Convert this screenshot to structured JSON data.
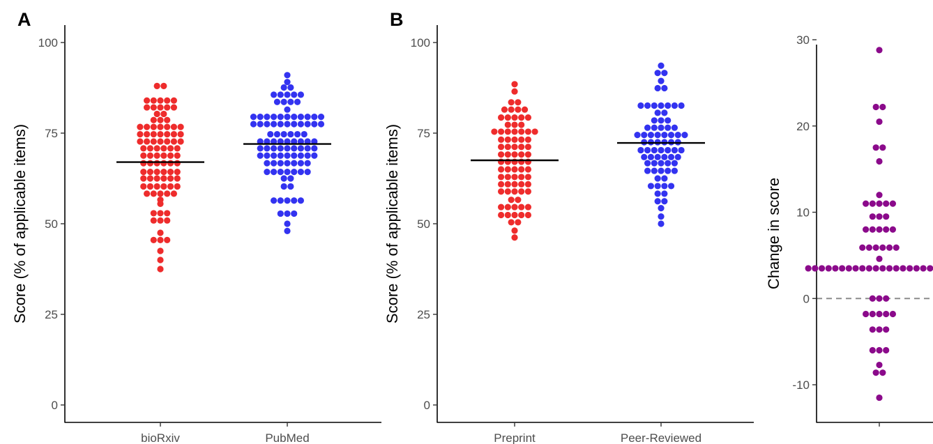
{
  "colors": {
    "group1": "#ee2c2c",
    "group2": "#3333f0",
    "change": "#8b0a8b",
    "mean_line": "#000000",
    "zero_line": "#8c8c8c"
  },
  "chart_data": [
    {
      "type": "scatter",
      "style": "beeswarm",
      "panel_label": "A",
      "title": "",
      "xlabel": "",
      "ylabel": "Score (% of applicable items)",
      "ylim": [
        0,
        100
      ],
      "yticks": [
        0,
        25,
        50,
        75,
        100
      ],
      "grid": false,
      "legend": "none",
      "categories": [
        "bioRxiv",
        "PubMed"
      ],
      "means": [
        67,
        72
      ],
      "values": [
        [
          37.5,
          40,
          42.5,
          45.5,
          45.5,
          45.5,
          47.5,
          50.9,
          50.9,
          50.9,
          52.9,
          52.9,
          52.9,
          55.5,
          56.6,
          58.3,
          58.3,
          58.3,
          58.3,
          58.3,
          60.3,
          60.3,
          60.3,
          60.3,
          60.3,
          60.3,
          62.5,
          62.5,
          62.5,
          62.5,
          62.5,
          62.5,
          64.3,
          64.3,
          64.3,
          64.3,
          64.3,
          64.3,
          66.7,
          66.7,
          66.7,
          66.7,
          66.7,
          66.7,
          68.8,
          68.8,
          68.8,
          68.8,
          68.8,
          68.8,
          70.8,
          70.8,
          70.8,
          70.8,
          70.8,
          70.8,
          72.7,
          72.7,
          72.7,
          72.7,
          72.7,
          72.7,
          72.7,
          74.7,
          74.7,
          74.7,
          74.7,
          74.7,
          74.7,
          74.7,
          76.7,
          76.7,
          76.7,
          76.7,
          76.7,
          76.7,
          76.7,
          78.6,
          78.6,
          78.6,
          80.3,
          80.3,
          82.1,
          82.1,
          82.1,
          82.1,
          82.1,
          84,
          84,
          84,
          84,
          84,
          88,
          88
        ],
        [
          48,
          50,
          52.8,
          52.8,
          52.8,
          56.4,
          56.4,
          56.4,
          56.4,
          56.4,
          60.3,
          60.3,
          62.5,
          62.5,
          64.3,
          64.3,
          64.3,
          64.3,
          64.3,
          64.3,
          64.3,
          66.7,
          66.7,
          66.7,
          66.7,
          66.7,
          66.7,
          66.7,
          68.8,
          68.8,
          68.8,
          68.8,
          68.8,
          68.8,
          68.8,
          68.8,
          68.8,
          70.8,
          70.8,
          70.8,
          70.8,
          70.8,
          70.8,
          70.8,
          70.8,
          70.8,
          72.7,
          72.7,
          72.7,
          72.7,
          72.7,
          72.7,
          72.7,
          72.7,
          72.7,
          74.7,
          74.7,
          74.7,
          74.7,
          74.7,
          74.7,
          77.5,
          77.5,
          77.5,
          77.5,
          77.5,
          77.5,
          77.5,
          77.5,
          77.5,
          77.5,
          77.5,
          79.5,
          79.5,
          79.5,
          79.5,
          79.5,
          79.5,
          79.5,
          79.5,
          79.5,
          79.5,
          79.5,
          81.5,
          83.6,
          83.6,
          83.6,
          83.6,
          85.6,
          85.6,
          85.6,
          85.6,
          85.6,
          87.6,
          87.6,
          89.1,
          91
        ]
      ]
    },
    {
      "type": "scatter",
      "style": "beeswarm",
      "panel_label": "B",
      "title": "",
      "xlabel": "",
      "ylabel": "Score (% of applicable items)",
      "ylim": [
        0,
        100
      ],
      "yticks": [
        0,
        25,
        50,
        75,
        100
      ],
      "grid": false,
      "legend": "none",
      "categories": [
        "Preprint",
        "Peer-Reviewed"
      ],
      "means": [
        67.5,
        72.3
      ],
      "values": [
        [
          46.2,
          48.1,
          50.4,
          50.4,
          52.4,
          52.4,
          52.4,
          52.4,
          52.4,
          54.6,
          54.6,
          54.6,
          54.6,
          54.6,
          56.6,
          56.6,
          58.9,
          58.9,
          58.9,
          58.9,
          58.9,
          60.9,
          60.9,
          60.9,
          60.9,
          60.9,
          62.9,
          62.9,
          62.9,
          62.9,
          62.9,
          65,
          65,
          65,
          65,
          65,
          67.1,
          67.1,
          67.1,
          67.1,
          67.1,
          69.1,
          69.1,
          69.1,
          69.1,
          69.1,
          71.2,
          71.2,
          71.2,
          71.2,
          71.2,
          73.2,
          73.2,
          73.2,
          73.2,
          73.2,
          75.4,
          75.4,
          75.4,
          75.4,
          75.4,
          75.4,
          75.4,
          77.3,
          77.3,
          77.3,
          79.3,
          79.3,
          79.3,
          79.3,
          79.3,
          81.5,
          81.5,
          81.5,
          81.5,
          83.5,
          83.5,
          86.5,
          88.5
        ],
        [
          50,
          52,
          54.3,
          56.2,
          56.2,
          58.3,
          58.3,
          60.4,
          60.4,
          60.4,
          60.4,
          62.5,
          62.5,
          64.6,
          64.6,
          64.6,
          64.6,
          64.6,
          66.7,
          66.7,
          66.7,
          66.7,
          66.7,
          68.4,
          68.4,
          68.4,
          68.4,
          68.4,
          68.4,
          70.3,
          70.3,
          70.3,
          70.3,
          70.3,
          70.3,
          70.3,
          72.5,
          72.5,
          72.5,
          72.5,
          72.5,
          72.5,
          74.5,
          74.5,
          74.5,
          74.5,
          74.5,
          74.5,
          74.5,
          74.5,
          76.5,
          76.5,
          76.5,
          76.5,
          76.5,
          78.5,
          78.5,
          78.5,
          80.6,
          80.6,
          82.6,
          82.6,
          82.6,
          82.6,
          82.6,
          82.6,
          82.6,
          87.4,
          87.4,
          89.4,
          91.6,
          91.6,
          93.6
        ]
      ]
    },
    {
      "type": "scatter",
      "style": "beeswarm",
      "panel_label": "",
      "title": "",
      "xlabel": "",
      "ylabel": "Change in score",
      "ylim": [
        -14,
        31
      ],
      "yticks": [
        -10,
        0,
        10,
        20,
        30
      ],
      "grid": false,
      "legend": "none",
      "categories": [
        ""
      ],
      "reference_line": 0,
      "values": [
        [
          -11.5,
          -8.6,
          -8.6,
          -7.7,
          -6,
          -6,
          -6,
          -3.6,
          -3.6,
          -3.6,
          -1.8,
          -1.8,
          -1.8,
          -1.8,
          -1.8,
          0,
          0,
          0,
          3.5,
          3.5,
          3.5,
          3.5,
          3.5,
          3.5,
          3.5,
          3.5,
          3.5,
          3.5,
          3.5,
          3.5,
          3.5,
          3.5,
          3.5,
          3.5,
          3.5,
          3.5,
          3.5,
          3.5,
          3.5,
          3.5,
          4.6,
          5.9,
          5.9,
          5.9,
          5.9,
          5.9,
          5.9,
          8,
          8,
          8,
          8,
          8,
          9.5,
          9.5,
          9.5,
          11,
          11,
          11,
          11,
          11,
          12,
          15.9,
          17.5,
          17.5,
          20.5,
          22.2,
          22.2,
          28.8
        ]
      ]
    }
  ]
}
